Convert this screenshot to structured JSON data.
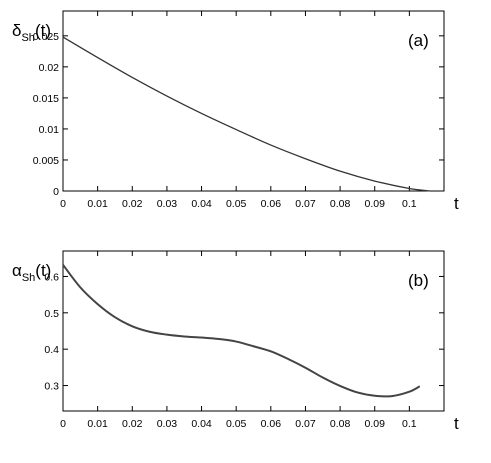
{
  "chart_data": [
    {
      "type": "line",
      "panel_label": "(a)",
      "ylabel": "δ",
      "ylabel_sub": "Sh",
      "ylabel_suffix": "(t)",
      "xlabel": "t",
      "xlim": [
        0,
        0.11
      ],
      "ylim": [
        0,
        0.029
      ],
      "x_ticks": [
        "0",
        "0.01",
        "0.02",
        "0.03",
        "0.04",
        "0.05",
        "0.06",
        "0.07",
        "0.08",
        "0.09",
        "0.1"
      ],
      "y_ticks": [
        "0",
        "0.005",
        "0.01",
        "0.015",
        "0.02",
        "0.025"
      ],
      "series": [
        {
          "x": [
            0,
            0.01,
            0.02,
            0.03,
            0.04,
            0.05,
            0.06,
            0.07,
            0.08,
            0.09,
            0.1,
            0.106
          ],
          "y": [
            0.0248,
            0.0215,
            0.0183,
            0.0153,
            0.0125,
            0.0099,
            0.0074,
            0.0052,
            0.0032,
            0.0016,
            0.0004,
            0.0
          ]
        }
      ]
    },
    {
      "type": "line",
      "panel_label": "(b)",
      "ylabel": "α",
      "ylabel_sub": "Sh",
      "ylabel_suffix": "(t)",
      "xlabel": "t",
      "xlim": [
        0,
        0.11
      ],
      "ylim": [
        0.23,
        0.67
      ],
      "x_ticks": [
        "0",
        "0.01",
        "0.02",
        "0.03",
        "0.04",
        "0.05",
        "0.06",
        "0.07",
        "0.08",
        "0.09",
        "0.1"
      ],
      "y_ticks": [
        "0.3",
        "0.4",
        "0.5",
        "0.6"
      ],
      "series": [
        {
          "x": [
            0,
            0.005,
            0.01,
            0.015,
            0.02,
            0.025,
            0.03,
            0.035,
            0.04,
            0.045,
            0.05,
            0.055,
            0.06,
            0.065,
            0.07,
            0.075,
            0.08,
            0.085,
            0.09,
            0.095,
            0.1,
            0.103
          ],
          "y": [
            0.632,
            0.57,
            0.524,
            0.488,
            0.463,
            0.448,
            0.44,
            0.435,
            0.432,
            0.428,
            0.421,
            0.408,
            0.394,
            0.373,
            0.349,
            0.322,
            0.299,
            0.281,
            0.272,
            0.271,
            0.283,
            0.298
          ]
        }
      ]
    }
  ]
}
